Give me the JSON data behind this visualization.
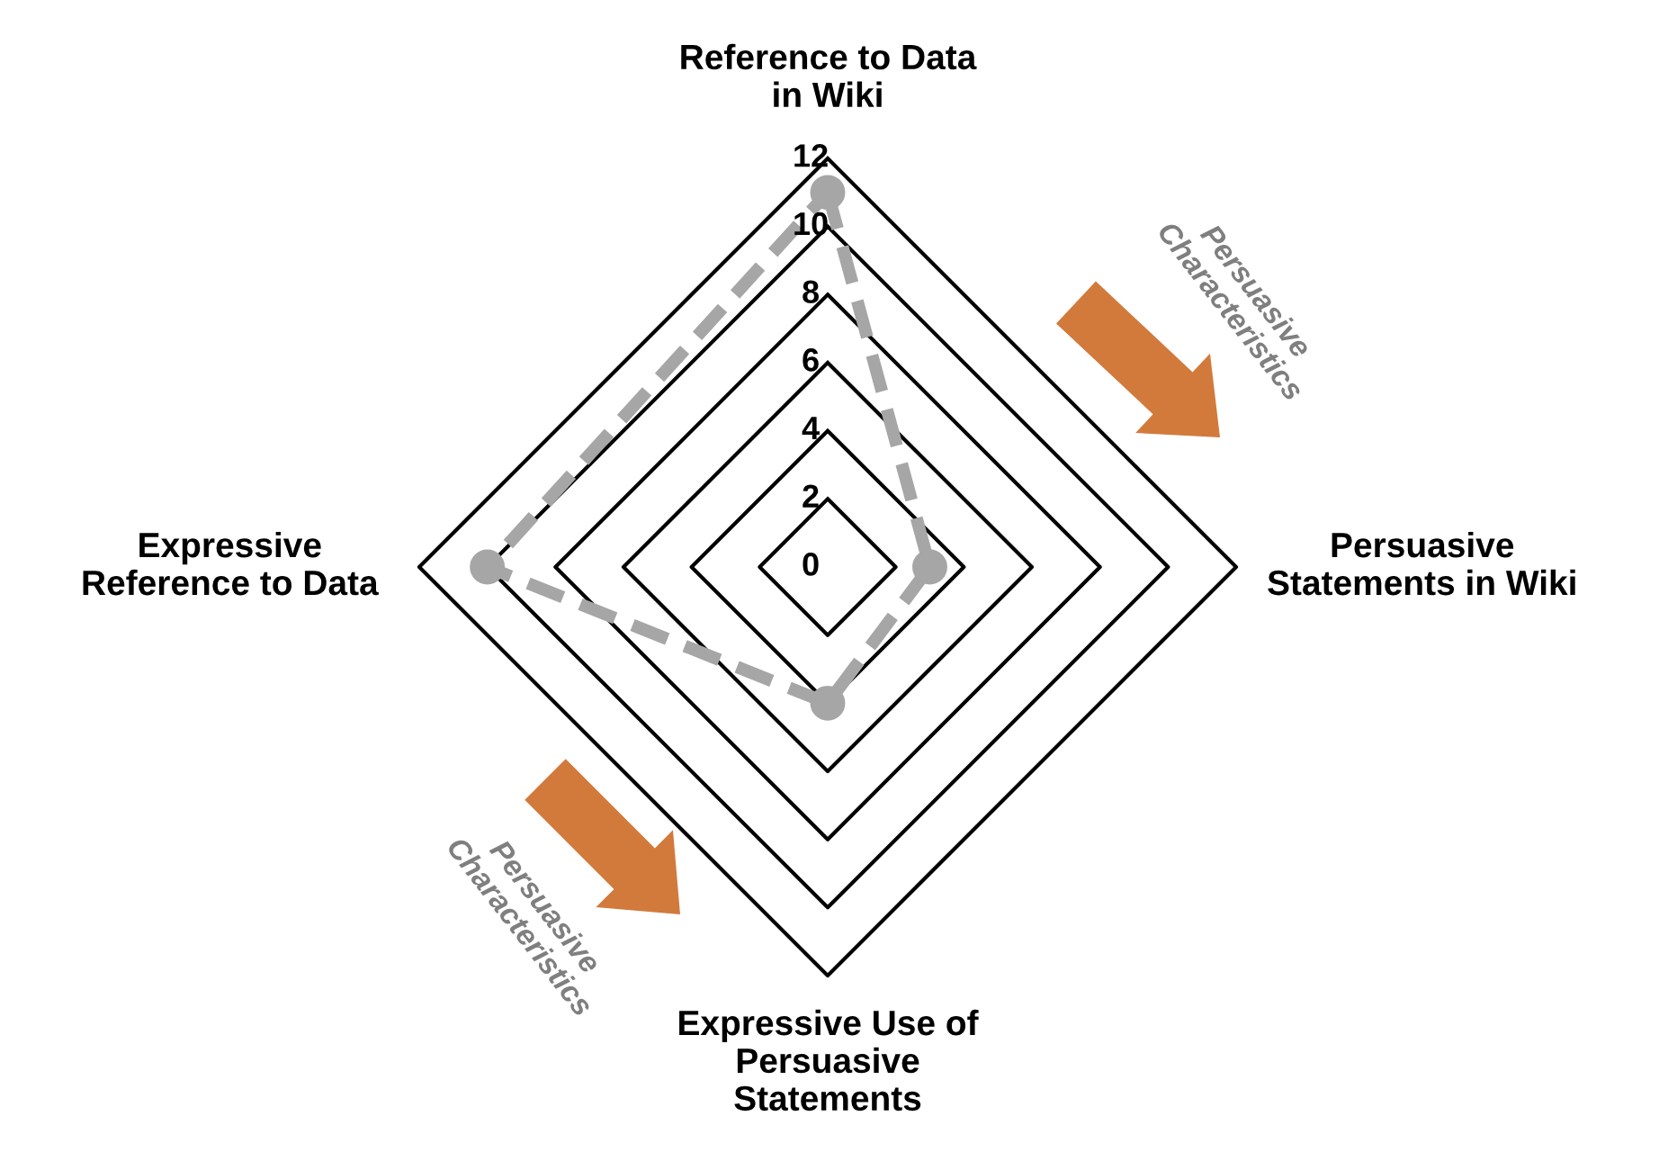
{
  "chart_data": {
    "type": "radar",
    "categories": [
      "Reference to Data\nin Wiki",
      "Persuasive\nStatements in Wiki",
      "Expressive Use of\nPersuasive\nStatements",
      "Expressive\nReference to Data"
    ],
    "series": [
      {
        "color": "#a6a6a6",
        "values": [
          11,
          3,
          4,
          10
        ]
      }
    ],
    "ylim": [
      0,
      12
    ],
    "yticks": [
      0,
      2,
      4,
      6,
      8,
      10,
      12
    ],
    "grid": true,
    "marker": "circle",
    "line_style": "dashed",
    "annotations": [
      "Persuasive\nCharacteristics",
      "Persuasive\nCharacteristics"
    ]
  }
}
